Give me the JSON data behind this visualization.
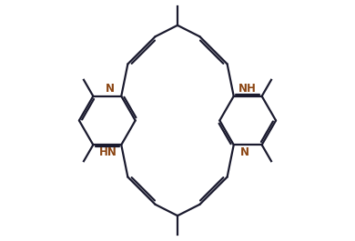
{
  "bg_color": "#ffffff",
  "bond_color": "#1a1a2e",
  "label_color": "#8B4513",
  "line_width": 1.6,
  "dbo": 0.07,
  "figsize": [
    3.9,
    2.65
  ],
  "dpi": 100,
  "xlim": [
    -4.2,
    4.2
  ],
  "ylim": [
    -3.5,
    3.5
  ]
}
